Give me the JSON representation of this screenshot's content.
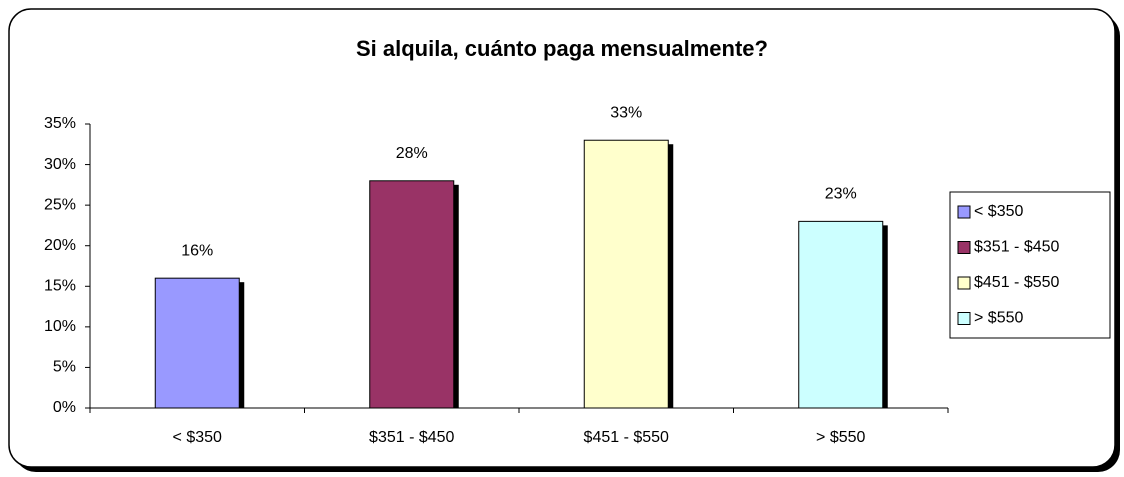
{
  "chart_data": {
    "type": "bar",
    "title": "Si alquila, cuánto paga mensualmente?",
    "categories": [
      "< $350",
      "$351 - $450",
      "$451 - $550",
      "> $550"
    ],
    "values": [
      16,
      28,
      33,
      23
    ],
    "value_labels": [
      "16%",
      "28%",
      "33%",
      "23%"
    ],
    "colors": [
      "#9999ff",
      "#993366",
      "#ffffcc",
      "#ccffff"
    ],
    "ylim": [
      0,
      35
    ],
    "yticks": [
      {
        "value": 0,
        "label": "0%"
      },
      {
        "value": 5,
        "label": "5%"
      },
      {
        "value": 10,
        "label": "10%"
      },
      {
        "value": 15,
        "label": "15%"
      },
      {
        "value": 20,
        "label": "20%"
      },
      {
        "value": 25,
        "label": "25%"
      },
      {
        "value": 30,
        "label": "30%"
      },
      {
        "value": 35,
        "label": "35%"
      }
    ],
    "legend": "right"
  }
}
